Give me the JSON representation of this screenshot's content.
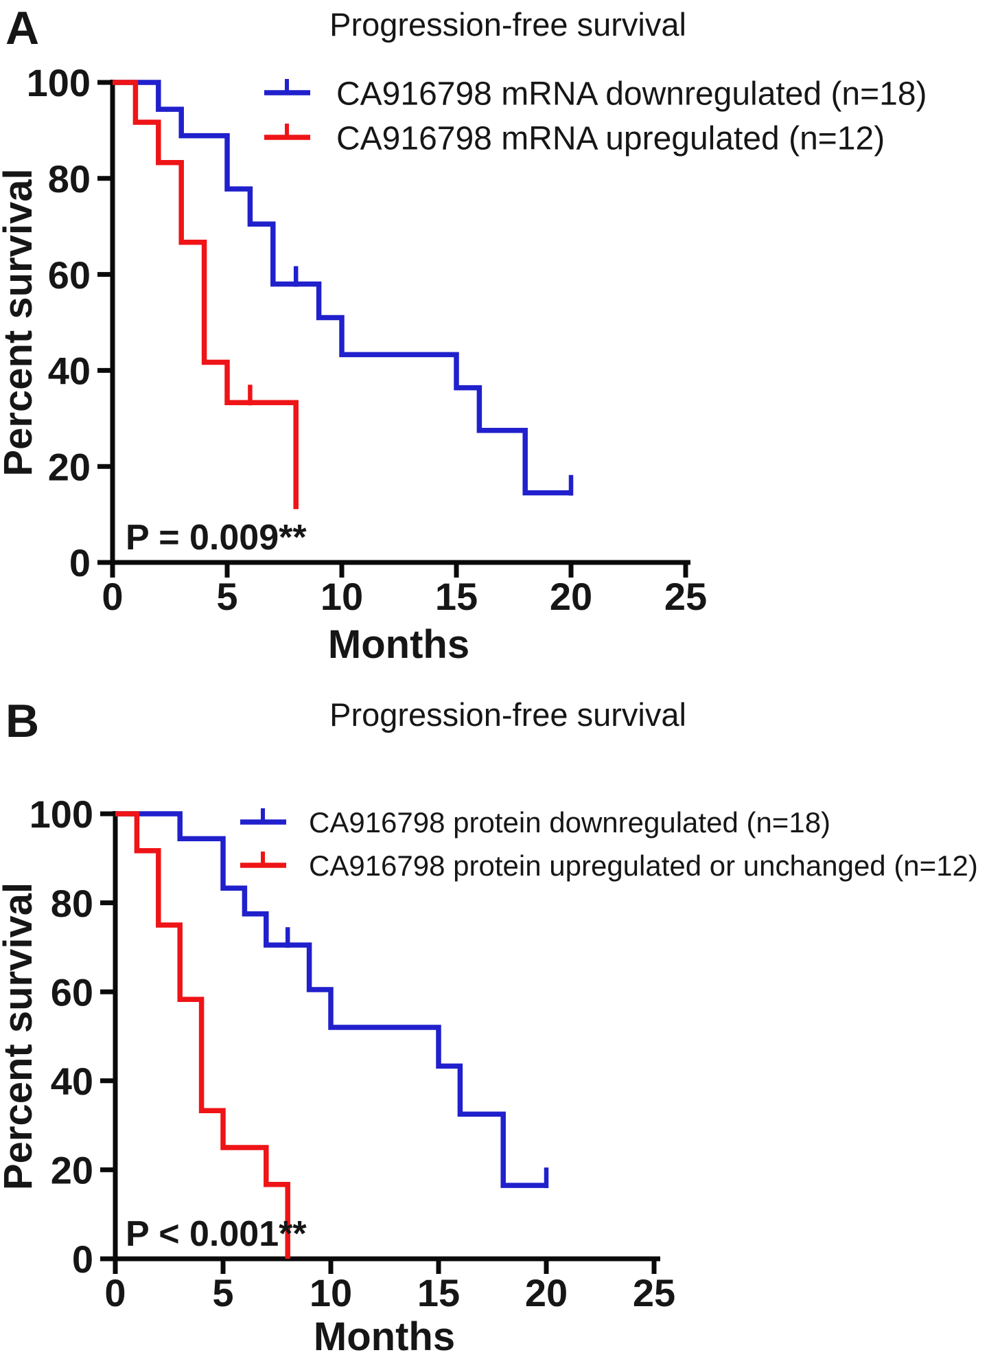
{
  "colors": {
    "blue": "#2020cc",
    "red": "#ee1417",
    "axis": "#0a0a0a",
    "text": "#161616"
  },
  "panels": [
    {
      "panel_label": "A",
      "title": "Progression-free survival",
      "x_axis_label": "Months",
      "y_axis_label": "Percent survival",
      "p_value_label": "P = 0.009**",
      "x_ticks": [
        "0",
        "5",
        "10",
        "15",
        "20",
        "25"
      ],
      "y_ticks": [
        "100",
        "80",
        "60",
        "40",
        "20",
        "0"
      ],
      "legend": [
        {
          "label": "CA916798 mRNA downregulated (n=18)",
          "color": "blue"
        },
        {
          "label": "CA916798 mRNA upregulated (n=12)",
          "color": "red"
        }
      ],
      "chart_data": {
        "type": "line",
        "subtype": "kaplan_meier_step",
        "title": "Progression-free survival",
        "xlabel": "Months",
        "ylabel": "Percent survival",
        "xlim": [
          0,
          25
        ],
        "ylim": [
          0,
          100
        ],
        "grid": false,
        "legend_position": "top-right-inside",
        "series": [
          {
            "name": "CA916798 mRNA downregulated (n=18)",
            "color": "blue",
            "n": 18,
            "steps_month_percent": [
              [
                0,
                100
              ],
              [
                2,
                94.4
              ],
              [
                3,
                88.9
              ],
              [
                5,
                77.8
              ],
              [
                6,
                70.5
              ],
              [
                7,
                58
              ],
              [
                9,
                51
              ],
              [
                10,
                43.3
              ],
              [
                15,
                36.4
              ],
              [
                16,
                27.5
              ],
              [
                18,
                14.5
              ]
            ],
            "end_month": 20,
            "end_drop_to_percent": null,
            "censor_marks_month_percent": [
              [
                8,
                58
              ],
              [
                20,
                14.5
              ]
            ]
          },
          {
            "name": "CA916798 mRNA upregulated (n=12)",
            "color": "red",
            "n": 12,
            "steps_month_percent": [
              [
                0,
                100
              ],
              [
                1,
                91.7
              ],
              [
                2,
                83.3
              ],
              [
                3,
                66.7
              ],
              [
                4,
                41.7
              ],
              [
                5,
                33.3
              ]
            ],
            "end_month": 8,
            "end_drop_to_percent": 11.1,
            "censor_marks_month_percent": [
              [
                6,
                33.3
              ]
            ]
          }
        ]
      }
    },
    {
      "panel_label": "B",
      "title": "Progression-free survival",
      "x_axis_label": "Months",
      "y_axis_label": "Percent survival",
      "p_value_label": "P < 0.001**",
      "x_ticks": [
        "0",
        "5",
        "10",
        "15",
        "20",
        "25"
      ],
      "y_ticks": [
        "100",
        "80",
        "60",
        "40",
        "20",
        "0"
      ],
      "legend": [
        {
          "label": "CA916798 protein downregulated (n=18)",
          "color": "blue"
        },
        {
          "label": "CA916798 protein upregulated or unchanged (n=12)",
          "color": "red"
        }
      ],
      "chart_data": {
        "type": "line",
        "subtype": "kaplan_meier_step",
        "title": "Progression-free survival",
        "xlabel": "Months",
        "ylabel": "Percent survival",
        "xlim": [
          0,
          25
        ],
        "ylim": [
          0,
          100
        ],
        "grid": false,
        "legend_position": "top-right-inside",
        "series": [
          {
            "name": "CA916798 protein downregulated (n=18)",
            "color": "blue",
            "n": 18,
            "steps_month_percent": [
              [
                0,
                100
              ],
              [
                3,
                94.4
              ],
              [
                5,
                83.3
              ],
              [
                6,
                77.5
              ],
              [
                7,
                70.5
              ],
              [
                9,
                60.5
              ],
              [
                10,
                52
              ],
              [
                15,
                43.3
              ],
              [
                16,
                32.5
              ],
              [
                18,
                16.5
              ]
            ],
            "end_month": 20,
            "end_drop_to_percent": null,
            "censor_marks_month_percent": [
              [
                8,
                70.5
              ],
              [
                20,
                16.5
              ]
            ]
          },
          {
            "name": "CA916798 protein upregulated or unchanged (n=12)",
            "color": "red",
            "n": 12,
            "steps_month_percent": [
              [
                0,
                100
              ],
              [
                1,
                91.7
              ],
              [
                2,
                75
              ],
              [
                3,
                58.3
              ],
              [
                4,
                33.3
              ],
              [
                5,
                25
              ],
              [
                7,
                16.7
              ]
            ],
            "end_month": 8,
            "end_drop_to_percent": 0,
            "censor_marks_month_percent": []
          }
        ]
      }
    }
  ]
}
